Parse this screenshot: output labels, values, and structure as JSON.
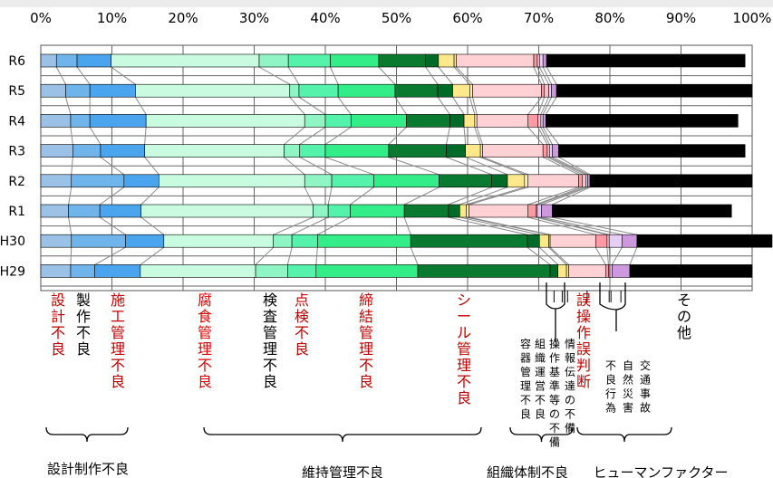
{
  "chart_data": {
    "type": "bar",
    "stacked": "horizontal-100%",
    "xlim": [
      0,
      100
    ],
    "x_ticks": [
      "0%",
      "10%",
      "20%",
      "30%",
      "40%",
      "50%",
      "60%",
      "70%",
      "80%",
      "90%",
      "100%"
    ],
    "categories": [
      "R6",
      "R5",
      "R4",
      "R3",
      "R2",
      "R1",
      "H30",
      "H29"
    ],
    "series": [
      {
        "name": "設計不良",
        "color": "#9bc2e6",
        "text_color": "#c00000",
        "values": [
          2.2,
          3.5,
          4.2,
          4.5,
          4.3,
          3.9,
          4.3,
          4.2
        ]
      },
      {
        "name": "製作不良",
        "color": "#6fb4ea",
        "text_color": "#000000",
        "values": [
          2.9,
          3.4,
          2.7,
          3.9,
          7.4,
          4.4,
          7.6,
          3.4
        ]
      },
      {
        "name": "施工管理不良",
        "color": "#4aa4ee",
        "text_color": "#c00000",
        "values": [
          4.8,
          6.4,
          7.9,
          6.2,
          4.9,
          5.8,
          5.4,
          6.4
        ]
      },
      {
        "name": "腐食管理不良",
        "color": "#c9fbe0",
        "text_color": "#e00000",
        "values": [
          20.8,
          21.7,
          22.3,
          19.6,
          20.5,
          24.2,
          15.4,
          16.2
        ]
      },
      {
        "name": "検査管理不良",
        "color": "#8ff5c5",
        "text_color": "#000000",
        "values": [
          4.1,
          1.3,
          2.9,
          2.2,
          3.8,
          2.1,
          2.6,
          4.5
        ]
      },
      {
        "name": "点検不良",
        "color": "#55f2ab",
        "text_color": "#c00000",
        "values": [
          5.9,
          5.5,
          3.6,
          3.6,
          5.9,
          3.1,
          3.6,
          4.0
        ]
      },
      {
        "name": "締結管理不良",
        "color": "#33ee88",
        "text_color": "#c00000",
        "values": [
          6.8,
          8.0,
          7.8,
          8.9,
          9.2,
          7.6,
          13.1,
          14.3
        ]
      },
      {
        "name": "シール管理不良",
        "color": "#0a7a30",
        "text_color": "#c00000",
        "values": [
          6.6,
          6.0,
          6.1,
          8.1,
          7.4,
          6.2,
          16.4,
          18.6
        ]
      },
      {
        "name": "情報伝達の不備",
        "color": "#006a28",
        "text_color": "#000000",
        "values": [
          1.8,
          2.1,
          2.0,
          2.7,
          2.2,
          1.6,
          1.7,
          1.1
        ]
      },
      {
        "name": "操作基準等の不備",
        "color": "#ffe88a",
        "text_color": "#000000",
        "values": [
          2.2,
          2.4,
          1.5,
          2.1,
          2.4,
          0.9,
          1.3,
          1.2
        ]
      },
      {
        "name": "組織運営不良",
        "color": "#fff2b0",
        "text_color": "#000000",
        "values": [
          0.3,
          0.4,
          0.3,
          0.3,
          0.5,
          0.4,
          0.2,
          0.3
        ]
      },
      {
        "name": "容器管理不良",
        "color": "#ffd0d4",
        "text_color": "#000000",
        "values": [
          10.9,
          9.7,
          7.2,
          8.5,
          7.1,
          8.3,
          6.4,
          5.2
        ]
      },
      {
        "name": "誤操作誤判断",
        "color": "#ff9aa4",
        "text_color": "#c00000",
        "values": [
          0.5,
          0.4,
          1.4,
          0.6,
          0.5,
          1.1,
          1.6,
          0.4
        ]
      },
      {
        "name": "不良行為",
        "color": "#ffc0cb",
        "text_color": "#000000",
        "values": [
          0.3,
          0.6,
          0.4,
          0.3,
          0.5,
          0.2,
          0.3,
          0.2
        ]
      },
      {
        "name": "自然災害",
        "color": "#e6cdf5",
        "text_color": "#000000",
        "values": [
          0.5,
          0.4,
          0.3,
          0.4,
          0.3,
          0.6,
          1.8,
          0.3
        ]
      },
      {
        "name": "交通事故",
        "color": "#cc99dd",
        "text_color": "#000000",
        "values": [
          0.5,
          0.7,
          0.4,
          0.9,
          0.3,
          1.5,
          2.1,
          2.5
        ]
      },
      {
        "name": "その他",
        "color": "#000000",
        "text_color": "#000000",
        "values": [
          27.9,
          27.5,
          27.0,
          26.2,
          22.8,
          25.2,
          19.0,
          17.2
        ]
      }
    ],
    "groups": [
      {
        "label": "設計制作不良",
        "from": 0,
        "to": 2
      },
      {
        "label": "維持管理不良",
        "from": 3,
        "to": 7
      },
      {
        "label": "組織体制不良",
        "from": 8,
        "to": 11
      },
      {
        "label": "ヒューマンファクター",
        "from": 12,
        "to": 15
      }
    ],
    "grid": true,
    "legend": "below"
  }
}
